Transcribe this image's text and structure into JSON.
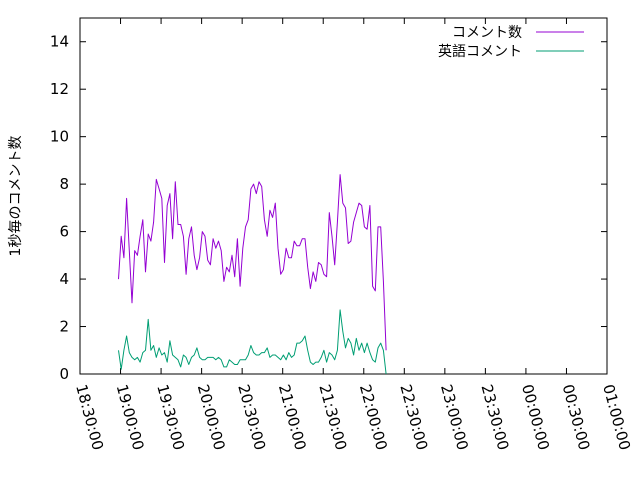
{
  "chart_data": {
    "type": "line",
    "title": "",
    "xlabel": "",
    "ylabel": "1秒毎のコメント数",
    "xlim": [
      "18:30:00",
      "01:00:00"
    ],
    "ylim": [
      0,
      15
    ],
    "x_ticks": [
      "18:30:00",
      "19:00:00",
      "19:30:00",
      "20:00:00",
      "20:30:00",
      "21:00:00",
      "21:30:00",
      "22:00:00",
      "22:30:00",
      "23:00:00",
      "23:30:00",
      "00:00:00",
      "00:30:00",
      "01:00:00"
    ],
    "y_ticks": [
      "0",
      "2",
      "4",
      "6",
      "8",
      "10",
      "12",
      "14"
    ],
    "grid": false,
    "legend_position": "top-right",
    "x_start": "18:58:30",
    "x_step_minutes": 2,
    "series": [
      {
        "name": "コメント数",
        "color": "#9400d3",
        "values": [
          4.0,
          5.8,
          4.9,
          7.4,
          5.2,
          3.0,
          5.2,
          5.0,
          5.8,
          6.5,
          4.3,
          5.9,
          5.6,
          6.4,
          8.2,
          7.8,
          7.4,
          4.7,
          7.1,
          7.6,
          5.7,
          8.1,
          6.3,
          6.3,
          5.8,
          4.2,
          5.7,
          6.2,
          5.0,
          4.4,
          4.9,
          6.0,
          5.8,
          4.8,
          4.6,
          5.7,
          5.3,
          5.6,
          5.2,
          3.9,
          4.5,
          4.3,
          5.0,
          4.1,
          5.7,
          3.7,
          5.3,
          6.2,
          6.5,
          7.8,
          8.0,
          7.6,
          8.1,
          7.9,
          6.5,
          5.8,
          6.9,
          6.6,
          7.2,
          5.3,
          4.2,
          4.4,
          5.3,
          4.9,
          4.9,
          5.6,
          5.4,
          5.4,
          5.7,
          5.7,
          4.5,
          3.6,
          4.3,
          3.9,
          4.7,
          4.6,
          4.2,
          4.1,
          6.8,
          5.8,
          4.6,
          6.4,
          8.4,
          7.2,
          7.0,
          5.5,
          5.6,
          6.4,
          6.8,
          7.2,
          7.1,
          6.2,
          6.1,
          7.1,
          3.7,
          3.5,
          6.2,
          6.2,
          3.9,
          1.0
        ]
      },
      {
        "name": "英語コメント",
        "color": "#009e73",
        "values": [
          1.0,
          0.2,
          1.0,
          1.6,
          0.9,
          0.7,
          0.6,
          0.7,
          0.5,
          0.9,
          1.0,
          2.3,
          1.0,
          1.2,
          0.7,
          1.1,
          0.8,
          0.9,
          0.5,
          1.4,
          0.8,
          0.7,
          0.6,
          0.3,
          0.8,
          0.7,
          0.4,
          0.7,
          0.8,
          1.1,
          0.7,
          0.6,
          0.6,
          0.7,
          0.7,
          0.7,
          0.6,
          0.7,
          0.6,
          0.3,
          0.3,
          0.6,
          0.5,
          0.4,
          0.4,
          0.6,
          0.6,
          0.6,
          0.8,
          1.2,
          0.9,
          0.8,
          0.8,
          0.9,
          0.9,
          1.1,
          0.7,
          0.8,
          0.8,
          0.7,
          0.6,
          0.8,
          0.6,
          0.9,
          0.7,
          0.8,
          1.3,
          1.3,
          1.4,
          1.6,
          1.0,
          0.5,
          0.4,
          0.5,
          0.5,
          0.7,
          1.0,
          0.5,
          0.9,
          0.8,
          0.6,
          1.0,
          2.7,
          1.8,
          1.1,
          1.5,
          1.3,
          0.8,
          1.5,
          1.0,
          1.3,
          0.9,
          1.3,
          0.9,
          0.6,
          0.5,
          1.1,
          1.3,
          1.0,
          0.0
        ]
      }
    ]
  }
}
